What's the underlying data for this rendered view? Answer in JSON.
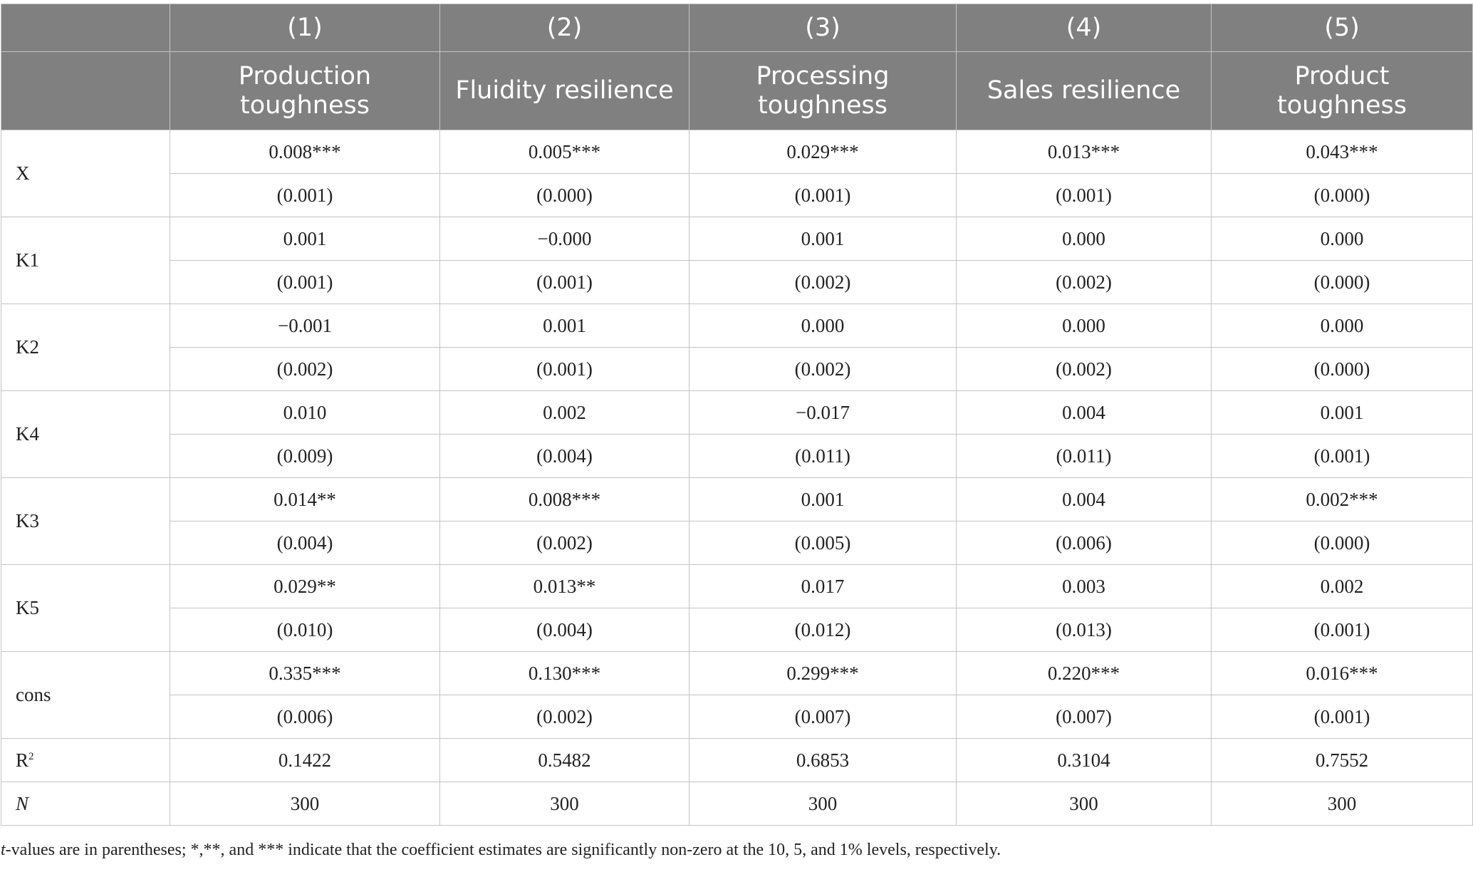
{
  "columns": [
    {
      "num": "(1)",
      "name_line1": "Production",
      "name_line2": "toughness"
    },
    {
      "num": "(2)",
      "name_line1": "Fluidity resilience",
      "name_line2": ""
    },
    {
      "num": "(3)",
      "name_line1": "Processing",
      "name_line2": "toughness"
    },
    {
      "num": "(4)",
      "name_line1": "Sales resilience",
      "name_line2": ""
    },
    {
      "num": "(5)",
      "name_line1": "Product",
      "name_line2": "toughness"
    }
  ],
  "rows": [
    {
      "label": "X",
      "coef": [
        "0.008***",
        "0.005***",
        "0.029***",
        "0.013***",
        "0.043***"
      ],
      "se": [
        "(0.001)",
        "(0.000)",
        "(0.001)",
        "(0.001)",
        "(0.000)"
      ]
    },
    {
      "label": "K1",
      "coef": [
        "0.001",
        "−0.000",
        "0.001",
        "0.000",
        "0.000"
      ],
      "se": [
        "(0.001)",
        "(0.001)",
        "(0.002)",
        "(0.002)",
        "(0.000)"
      ]
    },
    {
      "label": "K2",
      "coef": [
        "−0.001",
        "0.001",
        "0.000",
        "0.000",
        "0.000"
      ],
      "se": [
        "(0.002)",
        "(0.001)",
        "(0.002)",
        "(0.002)",
        "(0.000)"
      ]
    },
    {
      "label": "K4",
      "coef": [
        "0.010",
        "0.002",
        "−0.017",
        "0.004",
        "0.001"
      ],
      "se": [
        "(0.009)",
        "(0.004)",
        "(0.011)",
        "(0.011)",
        "(0.001)"
      ]
    },
    {
      "label": "K3",
      "coef": [
        "0.014**",
        "0.008***",
        "0.001",
        "0.004",
        "0.002***"
      ],
      "se": [
        "(0.004)",
        "(0.002)",
        "(0.005)",
        "(0.006)",
        "(0.000)"
      ]
    },
    {
      "label": "K5",
      "coef": [
        "0.029**",
        "0.013**",
        "0.017",
        "0.003",
        "0.002"
      ],
      "se": [
        "(0.010)",
        "(0.004)",
        "(0.012)",
        "(0.013)",
        "(0.001)"
      ]
    },
    {
      "label": "cons",
      "coef": [
        "0.335***",
        "0.130***",
        "0.299***",
        "0.220***",
        "0.016***"
      ],
      "se": [
        "(0.006)",
        "(0.002)",
        "(0.007)",
        "(0.007)",
        "(0.001)"
      ]
    }
  ],
  "r2": {
    "label": "R",
    "sup": "2",
    "values": [
      "0.1422",
      "0.5482",
      "0.6853",
      "0.3104",
      "0.7552"
    ]
  },
  "n": {
    "label": "N",
    "values": [
      "300",
      "300",
      "300",
      "300",
      "300"
    ]
  },
  "note": {
    "italic": "t",
    "text": "-values are in parentheses; *,**, and *** indicate that the coefficient estimates are significantly non-zero at the 10, 5, and 1% levels, respectively."
  }
}
